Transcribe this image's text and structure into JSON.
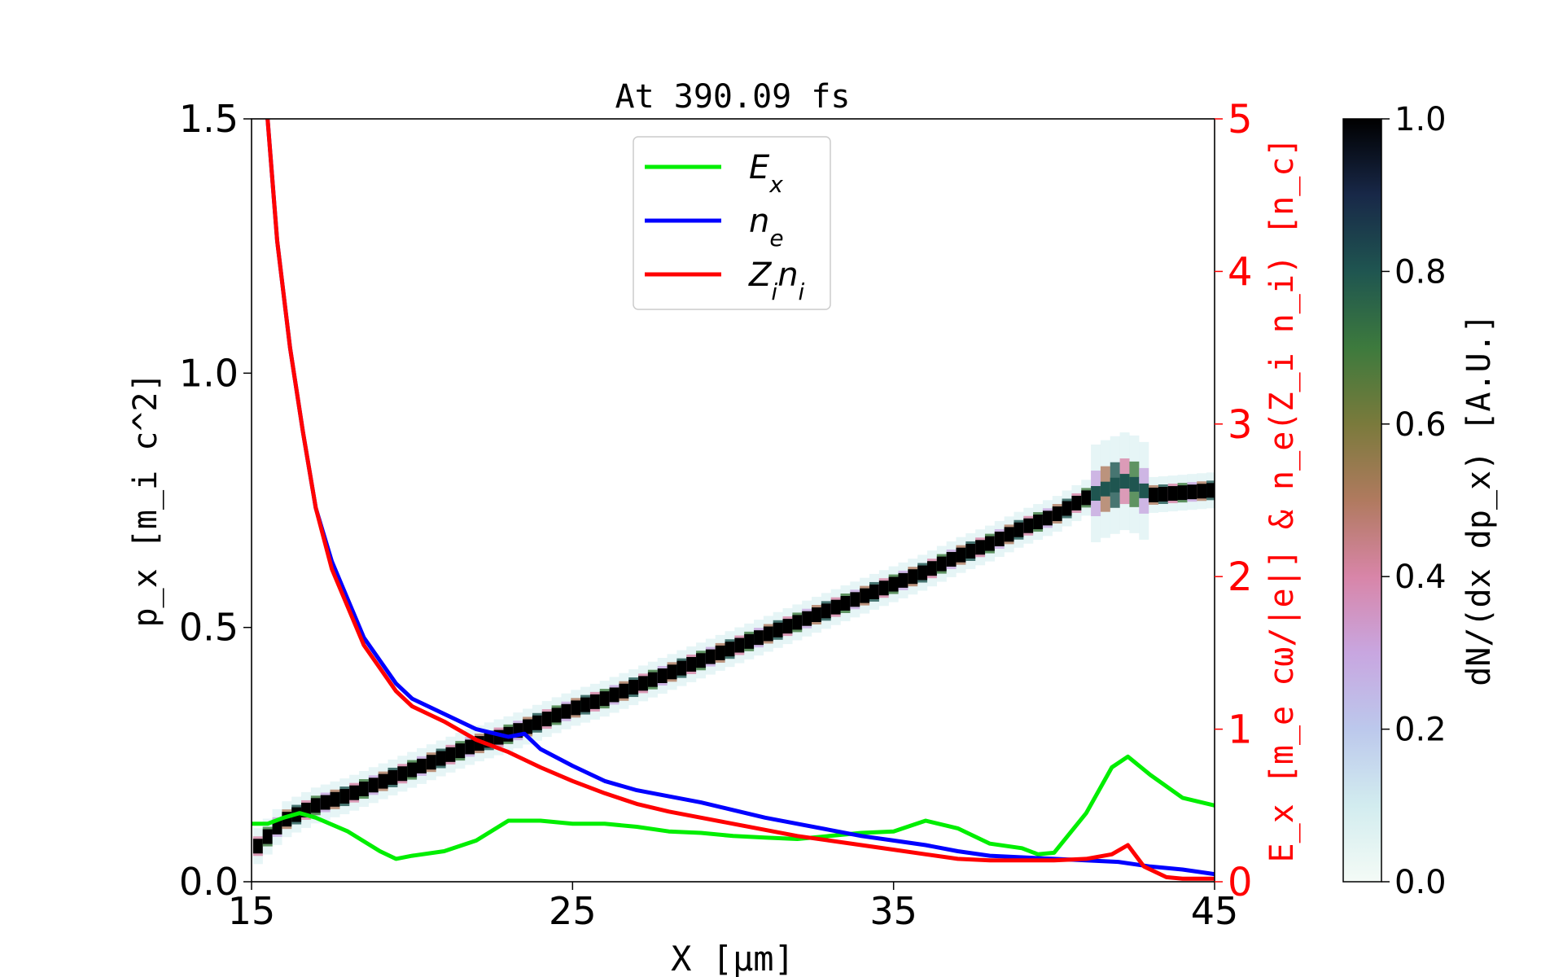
{
  "chart_data": {
    "type": "line",
    "title": "At 390.09 fs",
    "xlabel": "X [μm]",
    "ylabel_left": "p_x [m_i c^2]",
    "ylabel_right": "E_x [m_e cω/|e|] & n_e(Z_i n_i) [n_c]",
    "colorbar_label": "dN/(dx dp_x) [A.U.]",
    "xlim": [
      15,
      45
    ],
    "ylim_left": [
      0,
      1.5
    ],
    "ylim_right": [
      0,
      5
    ],
    "clim": [
      0,
      1
    ],
    "xticks": [
      {
        "value": 15,
        "label": "15"
      },
      {
        "value": 25,
        "label": "25"
      },
      {
        "value": 35,
        "label": "35"
      },
      {
        "value": 45,
        "label": "45"
      }
    ],
    "yticks_left": [
      {
        "value": 0,
        "label": "0.0"
      },
      {
        "value": 0.5,
        "label": "0.5"
      },
      {
        "value": 1.0,
        "label": "1.0"
      },
      {
        "value": 1.5,
        "label": "1.5"
      }
    ],
    "yticks_right": [
      {
        "value": 0,
        "label": "0"
      },
      {
        "value": 1,
        "label": "1"
      },
      {
        "value": 2,
        "label": "2"
      },
      {
        "value": 3,
        "label": "3"
      },
      {
        "value": 4,
        "label": "4"
      },
      {
        "value": 5,
        "label": "5"
      }
    ],
    "colorbar_ticks": [
      {
        "value": 0.0,
        "label": "0.0"
      },
      {
        "value": 0.2,
        "label": "0.2"
      },
      {
        "value": 0.4,
        "label": "0.4"
      },
      {
        "value": 0.6,
        "label": "0.6"
      },
      {
        "value": 0.8,
        "label": "0.8"
      },
      {
        "value": 1.0,
        "label": "1.0"
      }
    ],
    "legend_position": "top-center",
    "grid": false,
    "phase_space": {
      "name": "ion phase space",
      "axis": "left",
      "points": [
        [
          15.2,
          0.07
        ],
        [
          16,
          0.12
        ],
        [
          17,
          0.15
        ],
        [
          18,
          0.17
        ],
        [
          19,
          0.195
        ],
        [
          20,
          0.22
        ],
        [
          21,
          0.245
        ],
        [
          22,
          0.27
        ],
        [
          23,
          0.29
        ],
        [
          24,
          0.315
        ],
        [
          25,
          0.34
        ],
        [
          26,
          0.36
        ],
        [
          27,
          0.385
        ],
        [
          28,
          0.41
        ],
        [
          29,
          0.435
        ],
        [
          30,
          0.46
        ],
        [
          31,
          0.485
        ],
        [
          32,
          0.51
        ],
        [
          33,
          0.535
        ],
        [
          34,
          0.56
        ],
        [
          35,
          0.585
        ],
        [
          36,
          0.61
        ],
        [
          37,
          0.64
        ],
        [
          38,
          0.665
        ],
        [
          39,
          0.695
        ],
        [
          40,
          0.72
        ],
        [
          41,
          0.755
        ],
        [
          41.7,
          0.775
        ],
        [
          42.3,
          0.79
        ],
        [
          43,
          0.76
        ],
        [
          44,
          0.765
        ],
        [
          45,
          0.77
        ]
      ]
    },
    "series": [
      {
        "name": "E_x",
        "color": "#00ee00",
        "axis": "right",
        "x": [
          15,
          15.5,
          16,
          16.5,
          17,
          18,
          19,
          19.5,
          20,
          21,
          22,
          23,
          24,
          25,
          26,
          27,
          28,
          29,
          30,
          31,
          32,
          33,
          34,
          35,
          36,
          37,
          38,
          39,
          39.5,
          40,
          41,
          41.8,
          42.3,
          43,
          44,
          45
        ],
        "y": [
          0.38,
          0.38,
          0.42,
          0.45,
          0.42,
          0.33,
          0.2,
          0.15,
          0.17,
          0.2,
          0.27,
          0.4,
          0.4,
          0.38,
          0.38,
          0.36,
          0.33,
          0.32,
          0.3,
          0.29,
          0.28,
          0.3,
          0.32,
          0.33,
          0.4,
          0.35,
          0.25,
          0.22,
          0.18,
          0.19,
          0.45,
          0.75,
          0.82,
          0.7,
          0.55,
          0.5
        ]
      },
      {
        "name": "n_e",
        "color": "#0000ff",
        "axis": "right",
        "x": [
          15.5,
          15.8,
          16.2,
          16.6,
          17,
          17.5,
          18,
          18.5,
          19,
          19.5,
          20,
          21,
          22,
          23,
          23.5,
          24,
          25,
          26,
          27,
          28,
          29,
          30,
          31,
          32,
          33,
          34,
          35,
          36,
          37,
          38,
          39,
          40,
          41,
          42,
          43,
          44,
          45
        ],
        "y": [
          5.0,
          4.2,
          3.5,
          2.95,
          2.45,
          2.1,
          1.85,
          1.6,
          1.45,
          1.3,
          1.2,
          1.1,
          1.0,
          0.95,
          0.97,
          0.87,
          0.76,
          0.66,
          0.6,
          0.56,
          0.52,
          0.47,
          0.42,
          0.38,
          0.34,
          0.3,
          0.27,
          0.24,
          0.2,
          0.17,
          0.16,
          0.15,
          0.14,
          0.13,
          0.1,
          0.08,
          0.05
        ]
      },
      {
        "name": "Z_i n_i",
        "color": "#ff0000",
        "axis": "right",
        "x": [
          15.5,
          15.8,
          16.2,
          16.6,
          17,
          17.5,
          18,
          18.5,
          19,
          19.5,
          20,
          21,
          22,
          23,
          24,
          25,
          26,
          27,
          28,
          29,
          30,
          31,
          32,
          33,
          34,
          35,
          36,
          37,
          38,
          39,
          40,
          41,
          41.8,
          42.3,
          42.8,
          43.5,
          44,
          45
        ],
        "y": [
          5.0,
          4.2,
          3.5,
          2.95,
          2.45,
          2.05,
          1.8,
          1.55,
          1.4,
          1.25,
          1.15,
          1.05,
          0.93,
          0.85,
          0.75,
          0.66,
          0.58,
          0.51,
          0.46,
          0.42,
          0.38,
          0.34,
          0.3,
          0.27,
          0.24,
          0.21,
          0.18,
          0.15,
          0.14,
          0.14,
          0.14,
          0.15,
          0.18,
          0.24,
          0.1,
          0.03,
          0.02,
          0.02
        ]
      }
    ]
  }
}
